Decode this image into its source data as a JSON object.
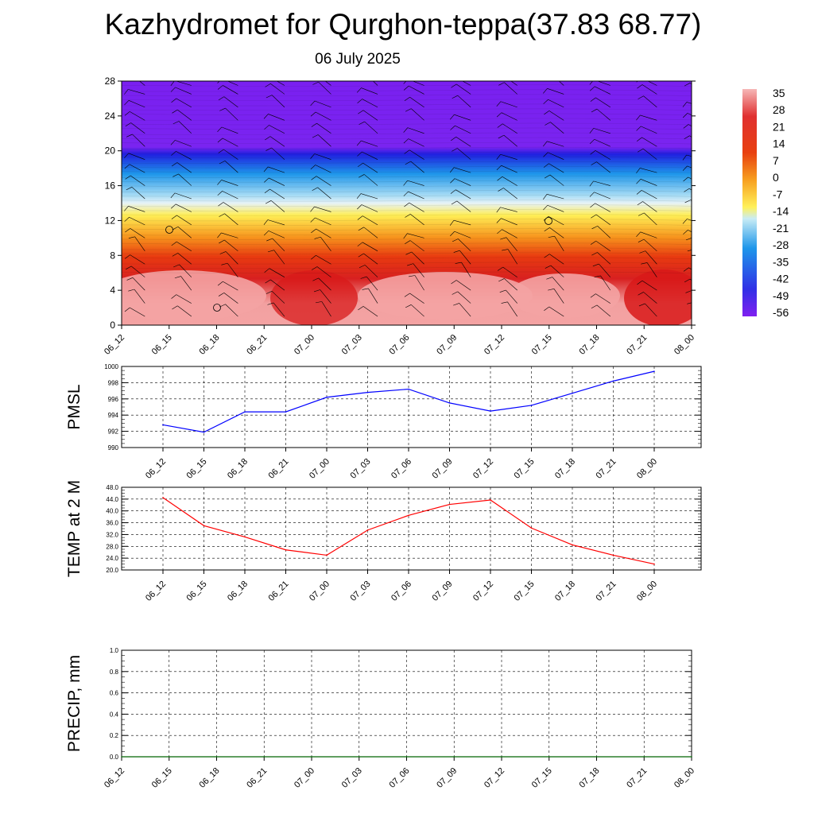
{
  "header": {
    "title": "Kazhydromet for Qurghon-teppa(37.83 68.77)",
    "subtitle": "06 July 2025"
  },
  "chart_data": [
    {
      "type": "heatmap",
      "description_role": "temperature cross-section with wind barbs",
      "x_ticks": [
        "06_12",
        "06_15",
        "06_18",
        "06_21",
        "07_00",
        "07_03",
        "07_06",
        "07_09",
        "07_12",
        "07_15",
        "07_18",
        "07_21",
        "08_00"
      ],
      "y_ticks": [
        "0",
        "4",
        "8",
        "12",
        "16",
        "20",
        "24",
        "28"
      ],
      "ylim": [
        0,
        28
      ],
      "colorbar_labels": [
        "35",
        "28",
        "21",
        "14",
        "7",
        "0",
        "-7",
        "-14",
        "-21",
        "-28",
        "-35",
        "-42",
        "-49",
        "-56"
      ],
      "colors": {
        "hot": "#f4a3a3",
        "red": "#d81919",
        "orange": "#f7941d",
        "yellow": "#fff15a",
        "light_blue": "#a9ddf5",
        "blue": "#1e90e6",
        "dark_blue": "#2424e6",
        "violet": "#7a20f0"
      }
    },
    {
      "type": "line",
      "ylabel": "PMSL",
      "x": [
        "06_12",
        "06_15",
        "06_18",
        "06_21",
        "07_00",
        "07_03",
        "07_06",
        "07_09",
        "07_12",
        "07_15",
        "07_18",
        "07_21",
        "08_00"
      ],
      "series": [
        {
          "values": [
            992.8,
            991.9,
            994.4,
            994.4,
            996.2,
            996.8,
            997.2,
            995.5,
            994.5,
            995.2,
            996.7,
            998.2,
            999.4
          ]
        }
      ],
      "ylim": [
        990,
        1000
      ],
      "y_ticks": [
        "990",
        "992",
        "994",
        "996",
        "998",
        "1000"
      ],
      "color": "#0000ff"
    },
    {
      "type": "line",
      "ylabel": "TEMP at 2 M",
      "x": [
        "06_12",
        "06_15",
        "06_18",
        "06_21",
        "07_00",
        "07_03",
        "07_06",
        "07_09",
        "07_12",
        "07_15",
        "07_18",
        "07_21",
        "08_00"
      ],
      "series": [
        {
          "values": [
            44.5,
            35.0,
            31.2,
            26.8,
            25.0,
            33.5,
            38.5,
            42.2,
            43.7,
            34.2,
            28.5,
            25.0,
            22.0
          ]
        }
      ],
      "ylim": [
        20,
        48
      ],
      "y_ticks": [
        "20.0",
        "24.0",
        "28.0",
        "32.0",
        "36.0",
        "40.0",
        "44.0",
        "48.0"
      ],
      "color": "#ff0000"
    },
    {
      "type": "line",
      "ylabel": "PRECIP, mm",
      "x": [
        "06_12",
        "06_15",
        "06_18",
        "06_21",
        "07_00",
        "07_03",
        "07_06",
        "07_09",
        "07_12",
        "07_15",
        "07_18",
        "07_21",
        "08_00"
      ],
      "series": [
        {
          "values": [
            0,
            0,
            0,
            0,
            0,
            0,
            0,
            0,
            0,
            0,
            0,
            0,
            0
          ]
        }
      ],
      "ylim": [
        0,
        1
      ],
      "y_ticks": [
        "0.0",
        "0.2",
        "0.4",
        "0.6",
        "0.8",
        "1.0"
      ],
      "color": "#006400"
    }
  ]
}
